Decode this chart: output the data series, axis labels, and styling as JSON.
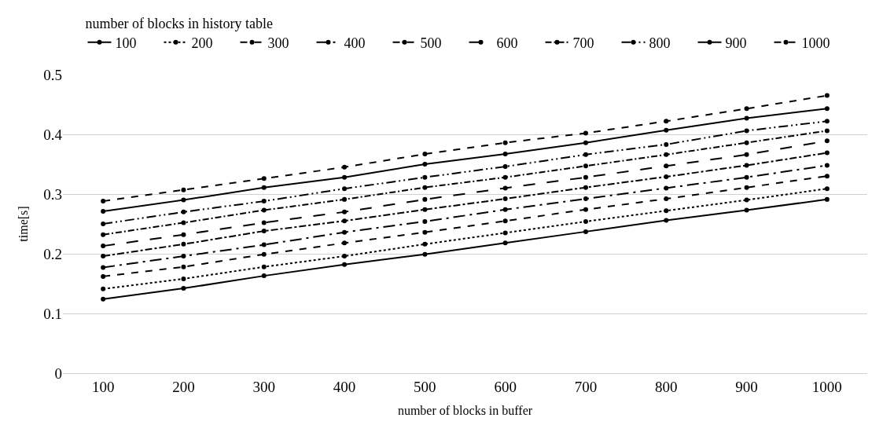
{
  "chart_data": {
    "type": "line",
    "xlabel": "number of blocks in buffer",
    "ylabel": "time[s]",
    "legend_title": "number of blocks in history table",
    "categories": [
      "100",
      "200",
      "300",
      "400",
      "500",
      "600",
      "700",
      "800",
      "900",
      "1000"
    ],
    "ylim": [
      0,
      0.5
    ],
    "yticks": [
      {
        "value": 0,
        "label": "0"
      },
      0.1,
      0.2,
      0.3,
      0.4,
      0.5
    ],
    "grid": "y",
    "legend": "top",
    "marker": "circle",
    "series": [
      {
        "name": "100",
        "color": "#000000",
        "line_style": "solid",
        "values": [
          0.124,
          0.142,
          0.163,
          0.182,
          0.199,
          0.218,
          0.237,
          0.256,
          0.273,
          0.291
        ]
      },
      {
        "name": "200",
        "color": "#000000",
        "line_style": "dotted",
        "values": [
          0.141,
          0.158,
          0.178,
          0.196,
          0.216,
          0.235,
          0.254,
          0.272,
          0.29,
          0.309
        ]
      },
      {
        "name": "300",
        "color": "#000000",
        "line_style": "dashed",
        "values": [
          0.162,
          0.178,
          0.199,
          0.218,
          0.236,
          0.255,
          0.274,
          0.292,
          0.311,
          0.33
        ]
      },
      {
        "name": "400",
        "color": "#000000",
        "line_style": "dashed",
        "values": [
          0.177,
          0.196,
          0.215,
          0.236,
          0.254,
          0.274,
          0.292,
          0.31,
          0.328,
          0.348
        ]
      },
      {
        "name": "500",
        "color": "#000000",
        "line_style": "dashed",
        "values": [
          0.196,
          0.216,
          0.238,
          0.255,
          0.274,
          0.292,
          0.311,
          0.329,
          0.348,
          0.369
        ]
      },
      {
        "name": "600",
        "color": "#000000",
        "line_style": "dashed",
        "values": [
          0.213,
          0.232,
          0.252,
          0.27,
          0.291,
          0.31,
          0.328,
          0.347,
          0.366,
          0.389
        ]
      },
      {
        "name": "700",
        "color": "#000000",
        "line_style": "dashed",
        "values": [
          0.232,
          0.252,
          0.273,
          0.291,
          0.311,
          0.328,
          0.347,
          0.366,
          0.386,
          0.406
        ]
      },
      {
        "name": "800",
        "color": "#000000",
        "line_style": "dashed",
        "values": [
          0.25,
          0.27,
          0.288,
          0.309,
          0.328,
          0.346,
          0.366,
          0.383,
          0.406,
          0.422
        ]
      },
      {
        "name": "900",
        "color": "#000000",
        "line_style": "solid",
        "values": [
          0.271,
          0.29,
          0.311,
          0.328,
          0.35,
          0.367,
          0.386,
          0.407,
          0.427,
          0.443
        ]
      },
      {
        "name": "1000",
        "color": "#000000",
        "line_style": "dashed",
        "values": [
          0.288,
          0.307,
          0.326,
          0.345,
          0.367,
          0.386,
          0.402,
          0.422,
          0.443,
          0.465
        ]
      }
    ]
  }
}
